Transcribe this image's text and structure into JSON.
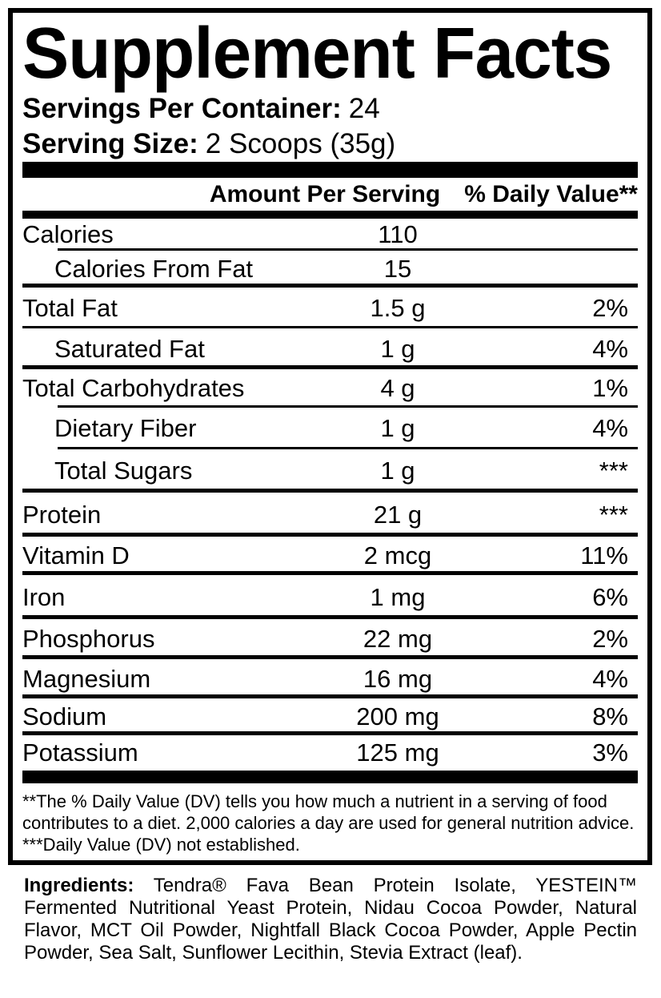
{
  "title": "Supplement Facts",
  "servings_per_container": {
    "label": "Servings Per Container:",
    "value": "24"
  },
  "serving_size": {
    "label": "Serving Size:",
    "value": "2 Scoops (35g)"
  },
  "table": {
    "amount_header": "Amount Per Serving",
    "dv_header": "% Daily Value**",
    "rows": [
      {
        "name": "Calories",
        "amount": "110",
        "dv": "",
        "indent": false,
        "rule_below": "thin_indent"
      },
      {
        "name": "Calories From Fat",
        "amount": "15",
        "dv": "",
        "indent": true,
        "rule_below": "thick"
      },
      {
        "name": "Total Fat",
        "amount": "1.5 g",
        "dv": "2%",
        "indent": false,
        "rule_below": "thin"
      },
      {
        "name": "Saturated Fat",
        "amount": "1 g",
        "dv": "4%",
        "indent": true,
        "rule_below": "thick"
      },
      {
        "name": "Total Carbohydrates",
        "amount": "4 g",
        "dv": "1%",
        "indent": false,
        "rule_below": "thin_indent"
      },
      {
        "name": "Dietary Fiber",
        "amount": "1 g",
        "dv": "4%",
        "indent": true,
        "rule_below": "thin_indent"
      },
      {
        "name": "Total Sugars",
        "amount": "1 g",
        "dv": "***",
        "indent": true,
        "rule_below": "thick"
      },
      {
        "name": "Protein",
        "amount": "21 g",
        "dv": "***",
        "indent": false,
        "rule_below": "thick"
      },
      {
        "name": "Vitamin D",
        "amount": "2 mcg",
        "dv": "11%",
        "indent": false,
        "rule_below": "thick"
      },
      {
        "name": "Iron",
        "amount": "1 mg",
        "dv": "6%",
        "indent": false,
        "rule_below": "thick"
      },
      {
        "name": "Phosphorus",
        "amount": "22 mg",
        "dv": "2%",
        "indent": false,
        "rule_below": "thick"
      },
      {
        "name": "Magnesium",
        "amount": "16 mg",
        "dv": "4%",
        "indent": false,
        "rule_below": "thick"
      },
      {
        "name": "Sodium",
        "amount": "200 mg",
        "dv": "8%",
        "indent": false,
        "rule_below": "thick"
      },
      {
        "name": "Potassium",
        "amount": "125 mg",
        "dv": "3%",
        "indent": false,
        "rule_below": "none"
      }
    ]
  },
  "footnotes": {
    "dv_note": "**The % Daily Value (DV) tells you how much a nutrient in a serving of food contributes to a diet. 2,000 calories a day are used for general nutrition advice.",
    "not_established_note": "***Daily Value (DV) not established."
  },
  "ingredients": {
    "label": "Ingredients:",
    "lines": [
      "Tendra® Fava Bean Protein Isolate, YESTEIN™",
      "Fermented Nutritional Yeast Protein, Nidau Cocoa Powder, Natural",
      "Flavor, MCT Oil Powder, Nightfall Black Cocoa Powder, Apple Pectin",
      "Powder, Sea Salt, Sunflower Lecithin, Stevia Extract (leaf)."
    ]
  },
  "colors": {
    "text": "#000000",
    "background": "#ffffff",
    "rule": "#000000"
  }
}
